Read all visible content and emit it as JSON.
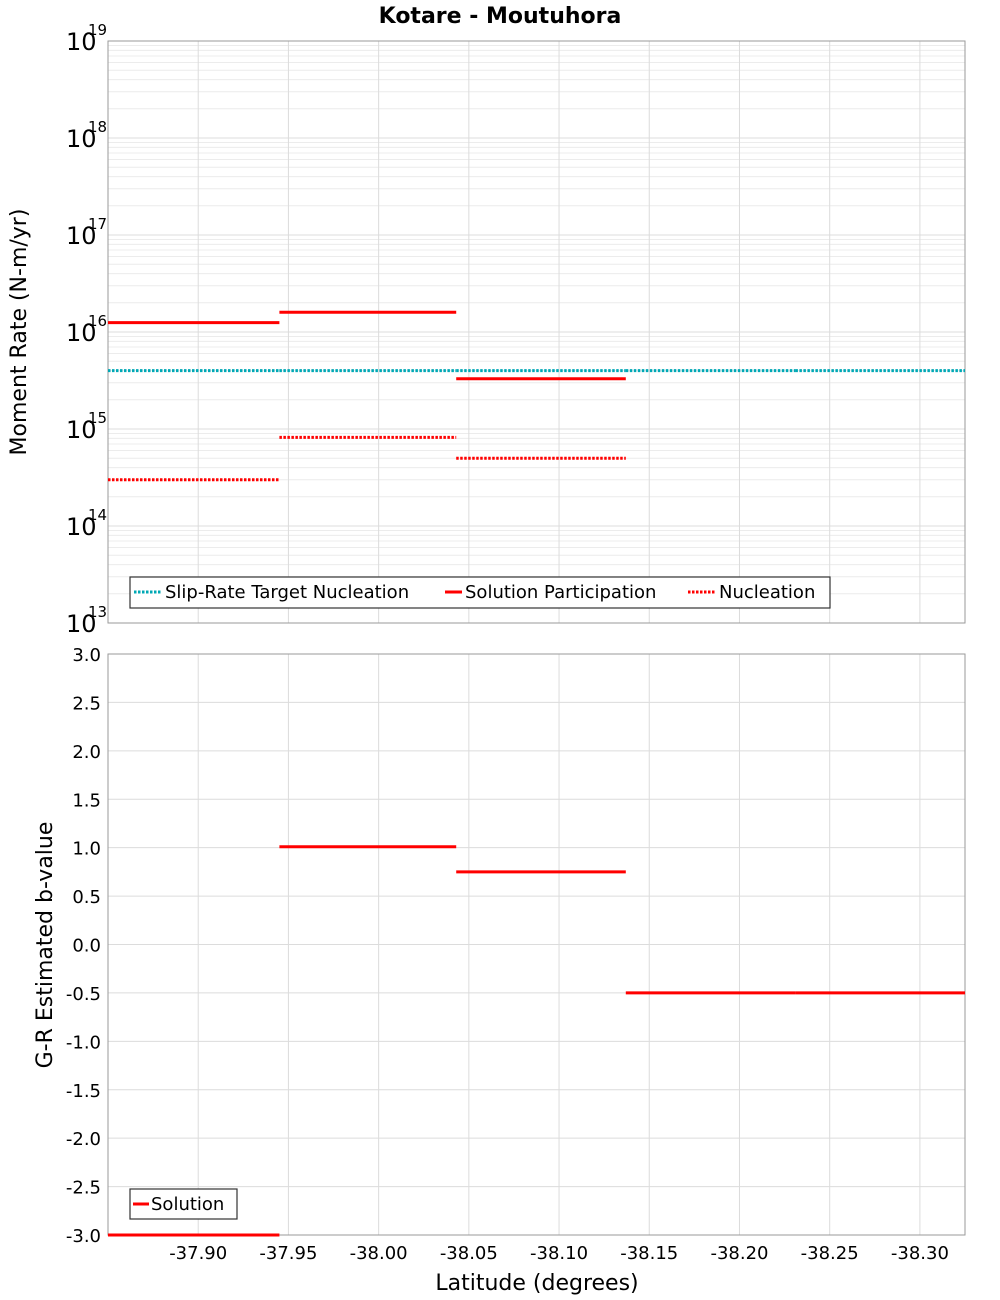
{
  "chart_data": [
    {
      "type": "line",
      "title": "Kotare - Moutuhora",
      "ylabel": "Moment Rate (N-m/yr)",
      "yscale": "log",
      "ylim": [
        10000000000000.0,
        1e+19
      ],
      "xlim": [
        -37.85,
        -38.325
      ],
      "x_reversed": true,
      "y_ticks": [
        {
          "base": "10",
          "exp": "13",
          "value": 10000000000000.0
        },
        {
          "base": "10",
          "exp": "14",
          "value": 100000000000000.0
        },
        {
          "base": "10",
          "exp": "15",
          "value": 1000000000000000.0
        },
        {
          "base": "10",
          "exp": "16",
          "value": 1e+16
        },
        {
          "base": "10",
          "exp": "17",
          "value": 1e+17
        },
        {
          "base": "10",
          "exp": "18",
          "value": 1e+18
        },
        {
          "base": "10",
          "exp": "19",
          "value": 1e+19
        }
      ],
      "grid": true,
      "legend_position": "bottom-left",
      "series": [
        {
          "name": "Slip-Rate Target Nucleation",
          "color": "#00a8b5",
          "style": "dotted",
          "segments": [
            {
              "x0": -37.85,
              "x1": -37.945,
              "y": 4000000000000000.0
            },
            {
              "x0": -37.945,
              "x1": -38.043,
              "y": 4000000000000000.0
            },
            {
              "x0": -38.043,
              "x1": -38.137,
              "y": 4000000000000000.0
            },
            {
              "x0": -38.137,
              "x1": -38.231,
              "y": 4000000000000000.0
            },
            {
              "x0": -38.231,
              "x1": -38.325,
              "y": 4000000000000000.0
            }
          ]
        },
        {
          "name": "Solution Participation",
          "color": "#ff0000",
          "style": "solid",
          "segments": [
            {
              "x0": -37.85,
              "x1": -37.945,
              "y": 1.25e+16
            },
            {
              "x0": -37.945,
              "x1": -38.043,
              "y": 1.6e+16
            },
            {
              "x0": -38.043,
              "x1": -38.137,
              "y": 3300000000000000.0
            }
          ]
        },
        {
          "name": "Nucleation",
          "color": "#ff0000",
          "style": "dotted",
          "segments": [
            {
              "x0": -37.85,
              "x1": -37.945,
              "y": 300000000000000.0
            },
            {
              "x0": -37.945,
              "x1": -38.043,
              "y": 820000000000000.0
            },
            {
              "x0": -38.043,
              "x1": -38.137,
              "y": 500000000000000.0
            }
          ]
        }
      ]
    },
    {
      "type": "line",
      "xlabel": "Latitude (degrees)",
      "ylabel": "G-R Estimated b-value",
      "ylim": [
        -3.0,
        3.0
      ],
      "xlim": [
        -37.85,
        -38.325
      ],
      "x_reversed": true,
      "x_ticks": [
        "-37.90",
        "-37.95",
        "-38.00",
        "-38.05",
        "-38.10",
        "-38.15",
        "-38.20",
        "-38.25",
        "-38.30"
      ],
      "x_tick_values": [
        -37.9,
        -37.95,
        -38.0,
        -38.05,
        -38.1,
        -38.15,
        -38.2,
        -38.25,
        -38.3
      ],
      "y_ticks": [
        "3.0",
        "2.5",
        "2.0",
        "1.5",
        "1.0",
        "0.5",
        "0.0",
        "-0.5",
        "-1.0",
        "-1.5",
        "-2.0",
        "-2.5",
        "-3.0"
      ],
      "y_tick_values": [
        3.0,
        2.5,
        2.0,
        1.5,
        1.0,
        0.5,
        0.0,
        -0.5,
        -1.0,
        -1.5,
        -2.0,
        -2.5,
        -3.0
      ],
      "grid": true,
      "legend_position": "bottom-left",
      "series": [
        {
          "name": "Solution",
          "color": "#ff0000",
          "style": "solid",
          "segments": [
            {
              "x0": -37.85,
              "x1": -37.945,
              "y": -3.0
            },
            {
              "x0": -37.945,
              "x1": -38.043,
              "y": 1.01
            },
            {
              "x0": -38.043,
              "x1": -38.137,
              "y": 0.75
            },
            {
              "x0": -38.137,
              "x1": -38.231,
              "y": -0.5
            },
            {
              "x0": -38.231,
              "x1": -38.325,
              "y": -0.5
            }
          ]
        }
      ]
    }
  ]
}
